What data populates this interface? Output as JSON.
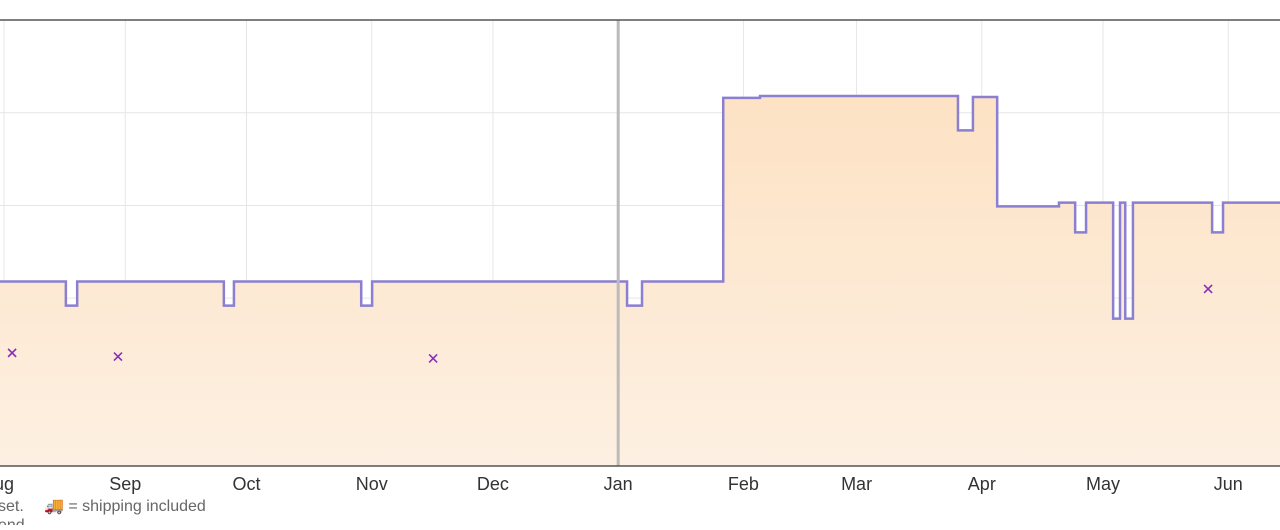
{
  "chart_data": {
    "type": "step",
    "xlim": [
      0,
      316.8
    ],
    "ylim": [
      0.19,
      5
    ],
    "xticks": [
      {
        "value": 1,
        "label": "ug"
      },
      {
        "value": 31,
        "label": "Sep"
      },
      {
        "value": 61,
        "label": "Oct"
      },
      {
        "value": 92,
        "label": "Nov"
      },
      {
        "value": 122,
        "label": "Dec"
      },
      {
        "value": 153,
        "label": "Jan"
      },
      {
        "value": 184,
        "label": "Feb"
      },
      {
        "value": 212,
        "label": "Mar"
      },
      {
        "value": 243,
        "label": "Apr"
      },
      {
        "value": 273,
        "label": "May"
      },
      {
        "value": 304,
        "label": "Jun"
      }
    ],
    "y_gridlines": [
      1,
      2,
      3,
      4
    ],
    "highlight_x": 153,
    "series": [
      {
        "color": "#8a7fd0",
        "fill": "#fbe3c8",
        "x": [
          0,
          16.3,
          19.1,
          55.4,
          57.9,
          89.4,
          92.1,
          155.2,
          158.9,
          179,
          188.1,
          237.1,
          240.8,
          246.8,
          262.1,
          266.1,
          268.8,
          275.5,
          277.2,
          278.5,
          280.4,
          300,
          302.7,
          316.8
        ],
        "values": [
          2.18,
          1.92,
          2.18,
          1.92,
          2.18,
          1.92,
          2.18,
          1.92,
          2.18,
          4.16,
          4.18,
          3.81,
          4.17,
          2.99,
          3.03,
          2.71,
          3.03,
          1.78,
          3.03,
          1.78,
          3.03,
          2.71,
          3.03,
          3.03
        ]
      },
      {
        "type": "scatter",
        "color": "#8b2fb8",
        "x": [
          3,
          29.2,
          107.2,
          299
        ],
        "values": [
          1.41,
          1.37,
          1.35,
          2.1
        ]
      }
    ],
    "footer": [
      "set.",
      "🚚 = shipping included",
      "end"
    ]
  }
}
